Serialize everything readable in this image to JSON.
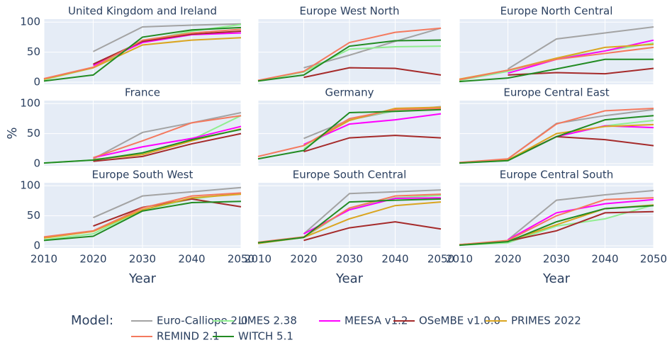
{
  "legend": {
    "title": "Model:"
  },
  "chart_data": [
    {
      "type": "line",
      "title": "United Kingdom and Ireland",
      "x": [
        2010,
        2020,
        2030,
        2040,
        2050
      ],
      "xlim": [
        2010,
        2050
      ],
      "xticks": [
        2010,
        2020,
        2030,
        2040,
        2050
      ],
      "ylim": [
        -3.5,
        105
      ],
      "yticks": [
        0,
        50,
        100
      ],
      "grid": true,
      "series": [
        {
          "name": "Euro-Calliope 2.0",
          "color": "#a3a3a3",
          "values": [
            null,
            51,
            92,
            95,
            97
          ]
        },
        {
          "name": "LIMES 2.38",
          "color": "#90ee90",
          "values": [
            4,
            24,
            68,
            85,
            96
          ]
        },
        {
          "name": "MEESA v1.2",
          "color": "#ff00ff",
          "values": [
            null,
            28,
            66,
            79,
            82
          ]
        },
        {
          "name": "OSeMBE v1.0.0",
          "color": "#a52a2a",
          "values": [
            null,
            30,
            68,
            80,
            85
          ]
        },
        {
          "name": "PRIMES 2022",
          "color": "#daa520",
          "values": [
            5,
            24,
            62,
            70,
            74
          ]
        },
        {
          "name": "REMIND 2.1",
          "color": "#f4795e",
          "values": [
            6,
            25,
            70,
            82,
            88
          ]
        },
        {
          "name": "WITCH 5.1",
          "color": "#228b22",
          "values": [
            2,
            12,
            75,
            87,
            91
          ]
        }
      ]
    },
    {
      "type": "line",
      "title": "Europe West North",
      "x": [
        2010,
        2020,
        2030,
        2040,
        2050
      ],
      "xlim": [
        2010,
        2050
      ],
      "xticks": [
        2010,
        2020,
        2030,
        2040,
        2050
      ],
      "ylim": [
        -3.5,
        105
      ],
      "yticks": [
        0,
        50,
        100
      ],
      "grid": true,
      "series": [
        {
          "name": "Euro-Calliope 2.0",
          "color": "#a3a3a3",
          "values": [
            null,
            24,
            45,
            68,
            90
          ]
        },
        {
          "name": "LIMES 2.38",
          "color": "#90ee90",
          "values": [
            2,
            17,
            55,
            59,
            60
          ]
        },
        {
          "name": "OSeMBE v1.0.0",
          "color": "#a52a2a",
          "values": [
            null,
            8,
            24,
            23,
            12
          ]
        },
        {
          "name": "REMIND 2.1",
          "color": "#f4795e",
          "values": [
            3,
            18,
            66,
            83,
            90
          ]
        },
        {
          "name": "WITCH 5.1",
          "color": "#228b22",
          "values": [
            2,
            12,
            60,
            69,
            70
          ]
        }
      ]
    },
    {
      "type": "line",
      "title": "Europe North Central",
      "x": [
        2010,
        2020,
        2030,
        2040,
        2050
      ],
      "xlim": [
        2010,
        2050
      ],
      "xticks": [
        2010,
        2020,
        2030,
        2040,
        2050
      ],
      "ylim": [
        -3.5,
        105
      ],
      "yticks": [
        0,
        50,
        100
      ],
      "grid": true,
      "series": [
        {
          "name": "Euro-Calliope 2.0",
          "color": "#a3a3a3",
          "values": [
            null,
            22,
            72,
            82,
            92
          ]
        },
        {
          "name": "LIMES 2.38",
          "color": "#90ee90",
          "values": [
            3,
            18,
            40,
            52,
            65
          ]
        },
        {
          "name": "MEESA v1.2",
          "color": "#ff00ff",
          "values": [
            null,
            15,
            38,
            52,
            70
          ]
        },
        {
          "name": "OSeMBE v1.0.0",
          "color": "#a52a2a",
          "values": [
            null,
            12,
            16,
            14,
            23
          ]
        },
        {
          "name": "PRIMES 2022",
          "color": "#daa520",
          "values": [
            5,
            20,
            40,
            58,
            63
          ]
        },
        {
          "name": "REMIND 2.1",
          "color": "#f4795e",
          "values": [
            4,
            20,
            38,
            48,
            58
          ]
        },
        {
          "name": "WITCH 5.1",
          "color": "#228b22",
          "values": [
            1,
            7,
            22,
            38,
            38
          ]
        }
      ]
    },
    {
      "type": "line",
      "title": "France",
      "ylabel": "%",
      "x": [
        2010,
        2020,
        2030,
        2040,
        2050
      ],
      "xlim": [
        2010,
        2050
      ],
      "xticks": [
        2010,
        2020,
        2030,
        2040,
        2050
      ],
      "ylim": [
        -3.5,
        105
      ],
      "yticks": [
        0,
        50,
        100
      ],
      "grid": true,
      "series": [
        {
          "name": "Euro-Calliope 2.0",
          "color": "#a3a3a3",
          "values": [
            null,
            8,
            52,
            68,
            85
          ]
        },
        {
          "name": "LIMES 2.38",
          "color": "#90ee90",
          "values": [
            1,
            6,
            17,
            40,
            80
          ]
        },
        {
          "name": "MEESA v1.2",
          "color": "#ff00ff",
          "values": [
            null,
            10,
            28,
            42,
            62
          ]
        },
        {
          "name": "OSeMBE v1.0.0",
          "color": "#a52a2a",
          "values": [
            null,
            4,
            12,
            33,
            50
          ]
        },
        {
          "name": "PRIMES 2022",
          "color": "#daa520",
          "values": [
            null,
            7,
            15,
            38,
            58
          ]
        },
        {
          "name": "REMIND 2.1",
          "color": "#f4795e",
          "values": [
            null,
            10,
            38,
            68,
            80
          ]
        },
        {
          "name": "WITCH 5.1",
          "color": "#228b22",
          "values": [
            1,
            6,
            18,
            40,
            57
          ]
        }
      ]
    },
    {
      "type": "line",
      "title": "Germany",
      "x": [
        2010,
        2020,
        2030,
        2040,
        2050
      ],
      "xlim": [
        2010,
        2050
      ],
      "xticks": [
        2010,
        2020,
        2030,
        2040,
        2050
      ],
      "ylim": [
        -3.5,
        105
      ],
      "yticks": [
        0,
        50,
        100
      ],
      "grid": true,
      "series": [
        {
          "name": "Euro-Calliope 2.0",
          "color": "#a3a3a3",
          "values": [
            null,
            42,
            73,
            88,
            95
          ]
        },
        {
          "name": "LIMES 2.38",
          "color": "#90ee90",
          "values": [
            null,
            25,
            75,
            88,
            90
          ]
        },
        {
          "name": "MEESA v1.2",
          "color": "#ff00ff",
          "values": [
            null,
            32,
            66,
            73,
            83
          ]
        },
        {
          "name": "OSeMBE v1.0.0",
          "color": "#a52a2a",
          "values": [
            null,
            20,
            43,
            47,
            43
          ]
        },
        {
          "name": "PRIMES 2022",
          "color": "#daa520",
          "values": [
            null,
            30,
            72,
            92,
            94
          ]
        },
        {
          "name": "REMIND 2.1",
          "color": "#f4795e",
          "values": [
            12,
            30,
            75,
            90,
            92
          ]
        },
        {
          "name": "WITCH 5.1",
          "color": "#228b22",
          "values": [
            8,
            22,
            85,
            87,
            90
          ]
        }
      ]
    },
    {
      "type": "line",
      "title": "Europe Central East",
      "x": [
        2010,
        2020,
        2030,
        2040,
        2050
      ],
      "xlim": [
        2010,
        2050
      ],
      "xticks": [
        2010,
        2020,
        2030,
        2040,
        2050
      ],
      "ylim": [
        -3.5,
        105
      ],
      "yticks": [
        0,
        50,
        100
      ],
      "grid": true,
      "series": [
        {
          "name": "Euro-Calliope 2.0",
          "color": "#a3a3a3",
          "values": [
            null,
            8,
            67,
            80,
            90
          ]
        },
        {
          "name": "LIMES 2.38",
          "color": "#90ee90",
          "values": [
            1,
            5,
            45,
            63,
            72
          ]
        },
        {
          "name": "MEESA v1.2",
          "color": "#ff00ff",
          "values": [
            null,
            6,
            45,
            63,
            60
          ]
        },
        {
          "name": "OSeMBE v1.0.0",
          "color": "#a52a2a",
          "values": [
            null,
            6,
            45,
            40,
            30
          ]
        },
        {
          "name": "PRIMES 2022",
          "color": "#daa520",
          "values": [
            1,
            6,
            50,
            62,
            65
          ]
        },
        {
          "name": "REMIND 2.1",
          "color": "#f4795e",
          "values": [
            2,
            8,
            66,
            88,
            92
          ]
        },
        {
          "name": "WITCH 5.1",
          "color": "#228b22",
          "values": [
            1,
            5,
            45,
            73,
            80
          ]
        }
      ]
    },
    {
      "type": "line",
      "title": "Europe South West",
      "xlabel": "Year",
      "x": [
        2010,
        2020,
        2030,
        2040,
        2050
      ],
      "xlim": [
        2010,
        2050
      ],
      "xticks": [
        2010,
        2020,
        2030,
        2040,
        2050
      ],
      "ylim": [
        -3.5,
        105
      ],
      "yticks": [
        0,
        50,
        100
      ],
      "grid": true,
      "series": [
        {
          "name": "Euro-Calliope 2.0",
          "color": "#a3a3a3",
          "values": [
            null,
            47,
            83,
            90,
            97
          ]
        },
        {
          "name": "LIMES 2.38",
          "color": "#90ee90",
          "values": [
            10,
            20,
            60,
            78,
            88
          ]
        },
        {
          "name": "OSeMBE v1.0.0",
          "color": "#a52a2a",
          "values": [
            null,
            33,
            64,
            78,
            65
          ]
        },
        {
          "name": "PRIMES 2022",
          "color": "#daa520",
          "values": [
            13,
            24,
            60,
            80,
            86
          ]
        },
        {
          "name": "REMIND 2.1",
          "color": "#f4795e",
          "values": [
            15,
            25,
            63,
            83,
            88
          ]
        },
        {
          "name": "WITCH 5.1",
          "color": "#228b22",
          "values": [
            9,
            16,
            58,
            72,
            74
          ]
        }
      ]
    },
    {
      "type": "line",
      "title": "Europe South Central",
      "xlabel": "Year",
      "x": [
        2010,
        2020,
        2030,
        2040,
        2050
      ],
      "xlim": [
        2010,
        2050
      ],
      "xticks": [
        2010,
        2020,
        2030,
        2040,
        2050
      ],
      "ylim": [
        -3.5,
        105
      ],
      "yticks": [
        0,
        50,
        100
      ],
      "grid": true,
      "series": [
        {
          "name": "Euro-Calliope 2.0",
          "color": "#a3a3a3",
          "values": [
            null,
            20,
            87,
            90,
            93
          ]
        },
        {
          "name": "LIMES 2.38",
          "color": "#90ee90",
          "values": [
            4,
            14,
            62,
            80,
            84
          ]
        },
        {
          "name": "MEESA v1.2",
          "color": "#ff00ff",
          "values": [
            null,
            20,
            60,
            79,
            80
          ]
        },
        {
          "name": "OSeMBE v1.0.0",
          "color": "#a52a2a",
          "values": [
            null,
            9,
            30,
            40,
            28
          ]
        },
        {
          "name": "PRIMES 2022",
          "color": "#daa520",
          "values": [
            4,
            14,
            45,
            67,
            73
          ]
        },
        {
          "name": "REMIND 2.1",
          "color": "#f4795e",
          "values": [
            6,
            15,
            63,
            83,
            86
          ]
        },
        {
          "name": "WITCH 5.1",
          "color": "#228b22",
          "values": [
            5,
            14,
            73,
            76,
            78
          ]
        }
      ]
    },
    {
      "type": "line",
      "title": "Europe Central South",
      "xlabel": "Year",
      "x": [
        2010,
        2020,
        2030,
        2040,
        2050
      ],
      "xlim": [
        2010,
        2050
      ],
      "xticks": [
        2010,
        2020,
        2030,
        2040,
        2050
      ],
      "ylim": [
        -3.5,
        105
      ],
      "yticks": [
        0,
        50,
        100
      ],
      "grid": true,
      "series": [
        {
          "name": "Euro-Calliope 2.0",
          "color": "#a3a3a3",
          "values": [
            null,
            10,
            76,
            85,
            92
          ]
        },
        {
          "name": "LIMES 2.38",
          "color": "#90ee90",
          "values": [
            1,
            5,
            33,
            45,
            68
          ]
        },
        {
          "name": "MEESA v1.2",
          "color": "#ff00ff",
          "values": [
            null,
            10,
            55,
            70,
            77
          ]
        },
        {
          "name": "OSeMBE v1.0.0",
          "color": "#a52a2a",
          "values": [
            null,
            8,
            25,
            55,
            57
          ]
        },
        {
          "name": "PRIMES 2022",
          "color": "#daa520",
          "values": [
            2,
            8,
            35,
            62,
            68
          ]
        },
        {
          "name": "REMIND 2.1",
          "color": "#f4795e",
          "values": [
            2,
            9,
            50,
            77,
            80
          ]
        },
        {
          "name": "WITCH 5.1",
          "color": "#228b22",
          "values": [
            1,
            7,
            40,
            62,
            67
          ]
        }
      ]
    }
  ]
}
